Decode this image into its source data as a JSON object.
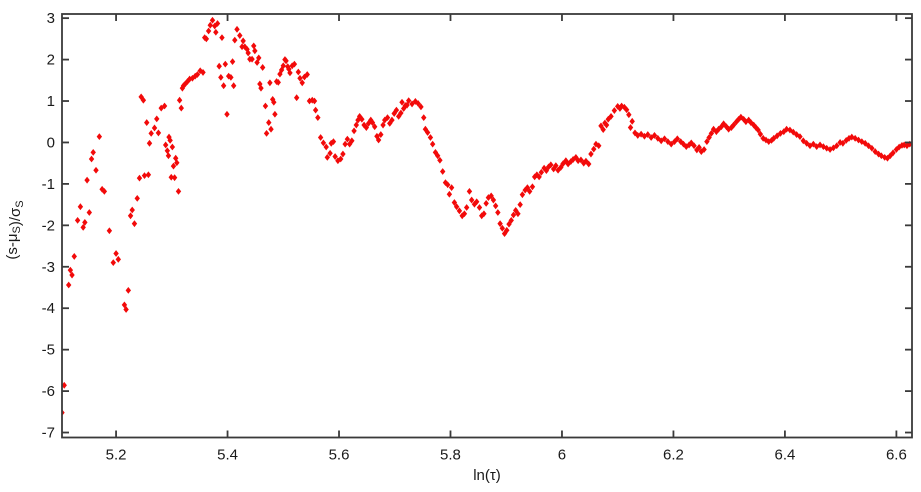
{
  "chart_data": {
    "type": "scatter",
    "title": "",
    "xlabel": "ln(τ)",
    "ylabel": "(s-μS)/σS",
    "ylabel_parts": [
      {
        "text": "(s-μ",
        "sub": false
      },
      {
        "text": "S",
        "sub": true
      },
      {
        "text": ")/σ",
        "sub": false
      },
      {
        "text": "S",
        "sub": true
      }
    ],
    "xlim": [
      5.103,
      6.628
    ],
    "ylim": [
      -7.12,
      3.1
    ],
    "x_ticks": [
      5.2,
      5.4,
      5.6,
      5.8,
      6,
      6.2,
      6.4,
      6.6
    ],
    "x_tick_labels": [
      "5.2",
      "5.4",
      "5.6",
      "5.8",
      "6",
      "6.2",
      "6.4",
      "6.6"
    ],
    "y_ticks": [
      3,
      2,
      1,
      0,
      -1,
      -2,
      -3,
      -4,
      -5,
      -6,
      -7
    ],
    "y_tick_labels": [
      "3",
      "2",
      "1",
      "0",
      "-1",
      "-2",
      "-3",
      "-4",
      "-5",
      "-6",
      "-7"
    ],
    "grid": false,
    "legend": null,
    "box": true,
    "tick_direction": "in",
    "marker": {
      "shape": "diamond",
      "color": "#f20a0a"
    },
    "axis_color": "#3a3a3a",
    "background_color": "#ffffff",
    "points": [
      [
        5.103,
        -6.52
      ],
      [
        5.107,
        -5.86
      ],
      [
        5.115,
        -3.44
      ],
      [
        5.118,
        -3.08
      ],
      [
        5.121,
        -3.2
      ],
      [
        5.125,
        -2.75
      ],
      [
        5.131,
        -1.88
      ],
      [
        5.136,
        -1.55
      ],
      [
        5.141,
        -2.05
      ],
      [
        5.144,
        -1.93
      ],
      [
        5.148,
        -0.91
      ],
      [
        5.152,
        -1.69
      ],
      [
        5.156,
        -0.4
      ],
      [
        5.159,
        -0.24
      ],
      [
        5.164,
        -0.67
      ],
      [
        5.17,
        0.14
      ],
      [
        5.175,
        -1.13
      ],
      [
        5.179,
        -1.18
      ],
      [
        5.188,
        -2.13
      ],
      [
        5.195,
        -2.9
      ],
      [
        5.2,
        -2.68
      ],
      [
        5.204,
        -2.82
      ],
      [
        5.215,
        -3.92
      ],
      [
        5.218,
        -4.03
      ],
      [
        5.222,
        -3.57
      ],
      [
        5.226,
        -1.77
      ],
      [
        5.229,
        -1.63
      ],
      [
        5.233,
        -1.96
      ],
      [
        5.238,
        -1.35
      ],
      [
        5.242,
        -0.86
      ],
      [
        5.245,
        1.1
      ],
      [
        5.249,
        1.02
      ],
      [
        5.251,
        -0.8
      ],
      [
        5.255,
        0.48
      ],
      [
        5.258,
        -0.78
      ],
      [
        5.26,
        -0.02
      ],
      [
        5.263,
        0.22
      ],
      [
        5.269,
        0.35
      ],
      [
        5.273,
        0.57
      ],
      [
        5.276,
        0.23
      ],
      [
        5.281,
        0.83
      ],
      [
        5.287,
        0.88
      ],
      [
        5.289,
        -0.06
      ],
      [
        5.292,
        -0.2
      ],
      [
        5.294,
        -0.32
      ],
      [
        5.295,
        0.13
      ],
      [
        5.297,
        0.05
      ],
      [
        5.299,
        -0.84
      ],
      [
        5.301,
        -0.11
      ],
      [
        5.303,
        -0.57
      ],
      [
        5.305,
        -0.85
      ],
      [
        5.307,
        -0.38
      ],
      [
        5.309,
        -0.49
      ],
      [
        5.312,
        -1.18
      ],
      [
        5.314,
        1.02
      ],
      [
        5.317,
        0.83
      ],
      [
        5.319,
        1.31
      ],
      [
        5.321,
        1.37
      ],
      [
        5.324,
        1.41
      ],
      [
        5.328,
        1.47
      ],
      [
        5.332,
        1.53
      ],
      [
        5.337,
        1.55
      ],
      [
        5.342,
        1.6
      ],
      [
        5.346,
        1.64
      ],
      [
        5.351,
        1.73
      ],
      [
        5.356,
        1.69
      ],
      [
        5.359,
        2.53
      ],
      [
        5.362,
        2.5
      ],
      [
        5.366,
        2.69
      ],
      [
        5.369,
        2.83
      ],
      [
        5.373,
        2.95
      ],
      [
        5.377,
        2.81
      ],
      [
        5.379,
        2.66
      ],
      [
        5.382,
        2.87
      ],
      [
        5.385,
        1.84
      ],
      [
        5.388,
        1.57
      ],
      [
        5.39,
        2.53
      ],
      [
        5.393,
        1.37
      ],
      [
        5.396,
        1.89
      ],
      [
        5.399,
        0.68
      ],
      [
        5.402,
        1.6
      ],
      [
        5.406,
        1.57
      ],
      [
        5.409,
        1.95
      ],
      [
        5.411,
        1.37
      ],
      [
        5.413,
        2.47
      ],
      [
        5.417,
        2.73
      ],
      [
        5.422,
        2.58
      ],
      [
        5.426,
        2.31
      ],
      [
        5.428,
        2.45
      ],
      [
        5.431,
        2.31
      ],
      [
        5.435,
        2.25
      ],
      [
        5.437,
        2.16
      ],
      [
        5.44,
        2.01
      ],
      [
        5.444,
        2.01
      ],
      [
        5.447,
        2.33
      ],
      [
        5.449,
        2.21
      ],
      [
        5.453,
        1.93
      ],
      [
        5.456,
        2.04
      ],
      [
        5.458,
        1.41
      ],
      [
        5.46,
        1.31
      ],
      [
        5.463,
        1.81
      ],
      [
        5.468,
        0.88
      ],
      [
        5.47,
        0.22
      ],
      [
        5.474,
        0.48
      ],
      [
        5.476,
        1.44
      ],
      [
        5.478,
        0.32
      ],
      [
        5.481,
        1.04
      ],
      [
        5.483,
        0.97
      ],
      [
        5.485,
        0.68
      ],
      [
        5.488,
        1.47
      ],
      [
        5.491,
        1.45
      ],
      [
        5.494,
        1.65
      ],
      [
        5.497,
        1.75
      ],
      [
        5.5,
        1.85
      ],
      [
        5.503,
        2.0
      ],
      [
        5.505,
        1.97
      ],
      [
        5.508,
        1.83
      ],
      [
        5.51,
        1.77
      ],
      [
        5.512,
        1.68
      ],
      [
        5.516,
        1.85
      ],
      [
        5.52,
        1.89
      ],
      [
        5.524,
        1.08
      ],
      [
        5.527,
        1.7
      ],
      [
        5.53,
        1.55
      ],
      [
        5.534,
        1.44
      ],
      [
        5.538,
        1.58
      ],
      [
        5.543,
        1.64
      ],
      [
        5.547,
        1.0
      ],
      [
        5.552,
        1.02
      ],
      [
        5.556,
        1.0
      ],
      [
        5.558,
        0.78
      ],
      [
        5.562,
        0.6
      ],
      [
        5.567,
        0.12
      ],
      [
        5.572,
        -0.01
      ],
      [
        5.577,
        -0.11
      ],
      [
        5.579,
        -0.36
      ],
      [
        5.584,
        -0.26
      ],
      [
        5.586,
        -0.02
      ],
      [
        5.59,
        0.02
      ],
      [
        5.593,
        -0.34
      ],
      [
        5.598,
        -0.44
      ],
      [
        5.603,
        -0.4
      ],
      [
        5.607,
        -0.28
      ],
      [
        5.611,
        -0.04
      ],
      [
        5.615,
        0.08
      ],
      [
        5.619,
        -0.04
      ],
      [
        5.623,
        0.04
      ],
      [
        5.627,
        0.28
      ],
      [
        5.631,
        0.42
      ],
      [
        5.634,
        0.54
      ],
      [
        5.637,
        0.63
      ],
      [
        5.641,
        0.56
      ],
      [
        5.645,
        0.42
      ],
      [
        5.649,
        0.36
      ],
      [
        5.653,
        0.46
      ],
      [
        5.657,
        0.54
      ],
      [
        5.66,
        0.48
      ],
      [
        5.664,
        0.38
      ],
      [
        5.668,
        0.15
      ],
      [
        5.671,
        0.06
      ],
      [
        5.675,
        0.19
      ],
      [
        5.679,
        0.42
      ],
      [
        5.682,
        0.54
      ],
      [
        5.687,
        0.6
      ],
      [
        5.691,
        0.46
      ],
      [
        5.695,
        0.54
      ],
      [
        5.699,
        0.7
      ],
      [
        5.703,
        0.78
      ],
      [
        5.707,
        0.63
      ],
      [
        5.711,
        0.71
      ],
      [
        5.713,
        0.97
      ],
      [
        5.716,
        0.82
      ],
      [
        5.719,
        0.89
      ],
      [
        5.722,
        0.9
      ],
      [
        5.725,
        1.01
      ],
      [
        5.731,
        0.93
      ],
      [
        5.737,
        0.99
      ],
      [
        5.742,
        0.94
      ],
      [
        5.747,
        0.86
      ],
      [
        5.752,
        0.6
      ],
      [
        5.755,
        0.32
      ],
      [
        5.759,
        0.24
      ],
      [
        5.764,
        0.12
      ],
      [
        5.768,
        -0.04
      ],
      [
        5.773,
        -0.24
      ],
      [
        5.777,
        -0.32
      ],
      [
        5.781,
        -0.43
      ],
      [
        5.786,
        -0.7
      ],
      [
        5.791,
        -0.97
      ],
      [
        5.795,
        -1.02
      ],
      [
        5.798,
        -1.25
      ],
      [
        5.802,
        -1.09
      ],
      [
        5.807,
        -1.45
      ],
      [
        5.811,
        -1.55
      ],
      [
        5.816,
        -1.65
      ],
      [
        5.821,
        -1.77
      ],
      [
        5.825,
        -1.72
      ],
      [
        5.829,
        -1.57
      ],
      [
        5.834,
        -1.18
      ],
      [
        5.838,
        -1.39
      ],
      [
        5.843,
        -1.49
      ],
      [
        5.847,
        -1.43
      ],
      [
        5.852,
        -1.57
      ],
      [
        5.856,
        -1.77
      ],
      [
        5.86,
        -1.72
      ],
      [
        5.864,
        -1.47
      ],
      [
        5.868,
        -1.33
      ],
      [
        5.873,
        -1.29
      ],
      [
        5.877,
        -1.39
      ],
      [
        5.881,
        -1.53
      ],
      [
        5.885,
        -1.69
      ],
      [
        5.889,
        -1.96
      ],
      [
        5.893,
        -2.07
      ],
      [
        5.897,
        -2.2
      ],
      [
        5.901,
        -2.12
      ],
      [
        5.905,
        -1.97
      ],
      [
        5.909,
        -1.88
      ],
      [
        5.913,
        -1.75
      ],
      [
        5.917,
        -1.64
      ],
      [
        5.921,
        -1.72
      ],
      [
        5.925,
        -1.5
      ],
      [
        5.929,
        -1.26
      ],
      [
        5.934,
        -1.15
      ],
      [
        5.938,
        -1.09
      ],
      [
        5.942,
        -1.18
      ],
      [
        5.947,
        -1.07
      ],
      [
        5.951,
        -0.83
      ],
      [
        5.955,
        -0.78
      ],
      [
        5.959,
        -0.83
      ],
      [
        5.963,
        -0.72
      ],
      [
        5.968,
        -0.62
      ],
      [
        5.972,
        -0.68
      ],
      [
        5.976,
        -0.59
      ],
      [
        5.98,
        -0.54
      ],
      [
        5.985,
        -0.64
      ],
      [
        5.989,
        -0.56
      ],
      [
        5.993,
        -0.67
      ],
      [
        5.998,
        -0.6
      ],
      [
        6.002,
        -0.51
      ],
      [
        6.007,
        -0.44
      ],
      [
        6.011,
        -0.52
      ],
      [
        6.016,
        -0.46
      ],
      [
        6.02,
        -0.41
      ],
      [
        6.025,
        -0.36
      ],
      [
        6.029,
        -0.44
      ],
      [
        6.034,
        -0.42
      ],
      [
        6.039,
        -0.5
      ],
      [
        6.043,
        -0.45
      ],
      [
        6.048,
        -0.52
      ],
      [
        6.052,
        -0.28
      ],
      [
        6.057,
        -0.16
      ],
      [
        6.061,
        -0.04
      ],
      [
        6.066,
        -0.08
      ],
      [
        6.07,
        0.4
      ],
      [
        6.074,
        0.31
      ],
      [
        6.077,
        0.47
      ],
      [
        6.08,
        0.42
      ],
      [
        6.083,
        0.56
      ],
      [
        6.088,
        0.63
      ],
      [
        6.094,
        0.77
      ],
      [
        6.1,
        0.87
      ],
      [
        6.104,
        0.82
      ],
      [
        6.107,
        0.88
      ],
      [
        6.112,
        0.85
      ],
      [
        6.116,
        0.79
      ],
      [
        6.12,
        0.67
      ],
      [
        6.123,
        0.36
      ],
      [
        6.126,
        0.51
      ],
      [
        6.131,
        0.23
      ],
      [
        6.136,
        0.17
      ],
      [
        6.142,
        0.2
      ],
      [
        6.148,
        0.15
      ],
      [
        6.154,
        0.19
      ],
      [
        6.16,
        0.12
      ],
      [
        6.166,
        0.17
      ],
      [
        6.172,
        0.1
      ],
      [
        6.178,
        0.04
      ],
      [
        6.184,
        0.09
      ],
      [
        6.19,
        0.02
      ],
      [
        6.196,
        -0.04
      ],
      [
        6.202,
        0.02
      ],
      [
        6.207,
        0.09
      ],
      [
        6.213,
        0.02
      ],
      [
        6.218,
        -0.04
      ],
      [
        6.223,
        -0.1
      ],
      [
        6.228,
        -0.06
      ],
      [
        6.232,
        -0.01
      ],
      [
        6.237,
        -0.08
      ],
      [
        6.242,
        -0.18
      ],
      [
        6.246,
        -0.12
      ],
      [
        6.25,
        -0.22
      ],
      [
        6.255,
        -0.17
      ],
      [
        6.26,
        0.02
      ],
      [
        6.264,
        0.12
      ],
      [
        6.268,
        0.22
      ],
      [
        6.272,
        0.32
      ],
      [
        6.277,
        0.26
      ],
      [
        6.281,
        0.32
      ],
      [
        6.286,
        0.38
      ],
      [
        6.29,
        0.45
      ],
      [
        6.295,
        0.38
      ],
      [
        6.299,
        0.32
      ],
      [
        6.304,
        0.36
      ],
      [
        6.308,
        0.42
      ],
      [
        6.313,
        0.5
      ],
      [
        6.317,
        0.56
      ],
      [
        6.321,
        0.61
      ],
      [
        6.326,
        0.56
      ],
      [
        6.33,
        0.5
      ],
      [
        6.335,
        0.54
      ],
      [
        6.339,
        0.48
      ],
      [
        6.344,
        0.42
      ],
      [
        6.348,
        0.36
      ],
      [
        6.352,
        0.3
      ],
      [
        6.356,
        0.2
      ],
      [
        6.361,
        0.1
      ],
      [
        6.366,
        0.06
      ],
      [
        6.371,
        0.02
      ],
      [
        6.376,
        0.05
      ],
      [
        6.38,
        0.1
      ],
      [
        6.386,
        0.16
      ],
      [
        6.392,
        0.22
      ],
      [
        6.398,
        0.26
      ],
      [
        6.403,
        0.32
      ],
      [
        6.409,
        0.3
      ],
      [
        6.415,
        0.25
      ],
      [
        6.421,
        0.19
      ],
      [
        6.427,
        0.14
      ],
      [
        6.433,
        0.04
      ],
      [
        6.439,
        -0.02
      ],
      [
        6.445,
        -0.08
      ],
      [
        6.451,
        -0.04
      ],
      [
        6.457,
        -0.1
      ],
      [
        6.463,
        -0.06
      ],
      [
        6.469,
        -0.1
      ],
      [
        6.475,
        -0.14
      ],
      [
        6.481,
        -0.17
      ],
      [
        6.487,
        -0.13
      ],
      [
        6.493,
        -0.08
      ],
      [
        6.499,
        0.0
      ],
      [
        6.504,
        -0.02
      ],
      [
        6.51,
        0.05
      ],
      [
        6.515,
        0.1
      ],
      [
        6.52,
        0.13
      ],
      [
        6.526,
        0.1
      ],
      [
        6.532,
        0.06
      ],
      [
        6.538,
        0.02
      ],
      [
        6.544,
        -0.02
      ],
      [
        6.55,
        -0.08
      ],
      [
        6.556,
        -0.14
      ],
      [
        6.562,
        -0.22
      ],
      [
        6.568,
        -0.28
      ],
      [
        6.573,
        -0.32
      ],
      [
        6.579,
        -0.36
      ],
      [
        6.584,
        -0.38
      ],
      [
        6.589,
        -0.32
      ],
      [
        6.594,
        -0.25
      ],
      [
        6.6,
        -0.17
      ],
      [
        6.605,
        -0.11
      ],
      [
        6.61,
        -0.07
      ],
      [
        6.614,
        -0.06
      ],
      [
        6.619,
        -0.08
      ],
      [
        6.624,
        -0.04
      ]
    ]
  }
}
